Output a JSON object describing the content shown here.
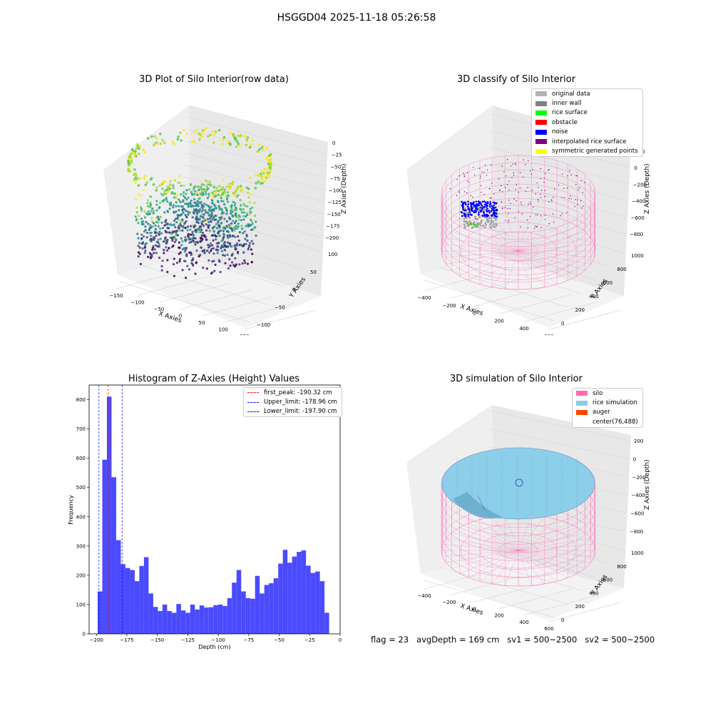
{
  "figure": {
    "suptitle": "HSGGD04 2025-11-18 05:26:58",
    "footer": {
      "flag": "flag = 23",
      "avg_depth": "avgDepth = 169 cm",
      "sv1": "sv1 = 500~2500",
      "sv2": "sv2 = 500~2500"
    }
  },
  "chart_data": [
    {
      "type": "scatter",
      "title": "3D Plot of Silo Interior(row data)",
      "xlabel": "X Axies",
      "ylabel": "Y Axies",
      "zlabel": "Z Axies (Depth)",
      "x_ticks": [
        "−150",
        "−100",
        "−50",
        "0",
        "50",
        "100",
        "150"
      ],
      "y_ticks": [
        "−100",
        "−50",
        "0",
        "50",
        "100"
      ],
      "z_ticks": [
        "0",
        "−25",
        "−50",
        "−75",
        "−100",
        "−125",
        "−150",
        "−175",
        "−200"
      ],
      "colormap": "viridis",
      "grid": true
    },
    {
      "type": "scatter",
      "title": "3D classify of Silo Interior",
      "xlabel": "X Axies",
      "ylabel": "Y Axies",
      "zlabel": "Z Axies (Depth)",
      "x_ticks": [
        "−400",
        "−200",
        "0",
        "200",
        "400",
        "600"
      ],
      "y_ticks": [
        "0",
        "200",
        "400",
        "600",
        "800",
        "1000"
      ],
      "z_ticks": [
        "200",
        "0",
        "−200",
        "−400",
        "−600",
        "−800"
      ],
      "legend_position": "top-right",
      "legend": [
        {
          "label": "original data",
          "color": "#b3b3b3"
        },
        {
          "label": "inner wall",
          "color": "#808080"
        },
        {
          "label": "rice surface",
          "color": "#00ff00"
        },
        {
          "label": "obstacle",
          "color": "#ff0000"
        },
        {
          "label": "noise",
          "color": "#0000ff"
        },
        {
          "label": "interpolated rice surface",
          "color": "#800080"
        },
        {
          "label": "symmetric generated points",
          "color": "#ffff00"
        }
      ]
    },
    {
      "type": "bar",
      "title": "Histogram of Z-Axies (Height) Values",
      "xlabel": "Depth (cm)",
      "ylabel": "Frequency",
      "xlim": [
        -206,
        0
      ],
      "ylim": [
        0,
        850
      ],
      "x_ticks": [
        -200,
        -175,
        -150,
        -125,
        -100,
        -75,
        -50,
        -25,
        0
      ],
      "y_ticks": [
        0,
        100,
        200,
        300,
        400,
        500,
        600,
        700,
        800
      ],
      "bar_color": "#4a4aff",
      "bin_start": -199,
      "bin_width": 3.8,
      "values": [
        145,
        595,
        810,
        535,
        320,
        238,
        225,
        218,
        180,
        232,
        262,
        138,
        92,
        78,
        100,
        78,
        72,
        102,
        80,
        72,
        100,
        83,
        97,
        90,
        91,
        98,
        100,
        95,
        122,
        175,
        218,
        145,
        122,
        120,
        198,
        138,
        167,
        173,
        190,
        240,
        287,
        243,
        264,
        280,
        285,
        233,
        208,
        213,
        180,
        72
      ],
      "vlines": [
        {
          "x": -190.32,
          "color": "#ff0000",
          "label": "first_peak: -190.32 cm"
        },
        {
          "x": -178.96,
          "color": "#0000ff",
          "label": "Upper_limit: -178.96 cm"
        },
        {
          "x": -197.9,
          "color": "#0000ff",
          "label": "Lower_limit: -197.90 cm"
        }
      ],
      "legend_position": "top-right"
    },
    {
      "type": "scatter",
      "title": "3D simulation of Silo Interior",
      "xlabel": "X Axies",
      "ylabel": "Y Axies",
      "zlabel": "Z Axies (Depth)",
      "x_ticks": [
        "−400",
        "−200",
        "0",
        "200",
        "400",
        "600"
      ],
      "y_ticks": [
        "0",
        "200",
        "400",
        "600",
        "800",
        "1000"
      ],
      "z_ticks": [
        "200",
        "0",
        "−200",
        "−400",
        "−600",
        "−800"
      ],
      "legend_position": "top-right",
      "legend": [
        {
          "label": "silo",
          "color": "#ff69b4"
        },
        {
          "label": "rice simulation",
          "color": "#87ceeb"
        },
        {
          "label": "auger",
          "color": "#ff4500"
        },
        {
          "label": "center(76,488)",
          "color": "#ffffff"
        }
      ]
    }
  ]
}
